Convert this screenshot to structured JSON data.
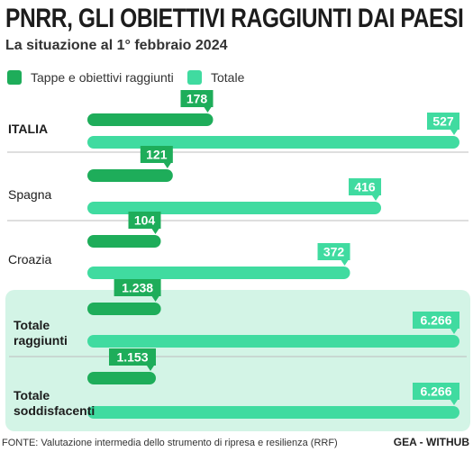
{
  "title": "PNRR, GLI OBIETTIVI RAGGIUNTI DAI PAESI",
  "subtitle": "La situazione al 1° febbraio 2024",
  "colors": {
    "dark": "#1ead5a",
    "light": "#40dba0",
    "panel": "#d3f4e6",
    "divider": "#bdbdbd"
  },
  "legend": [
    {
      "label": "Tappe e obiettivi raggiunti",
      "color": "#1ead5a"
    },
    {
      "label": "Totale",
      "color": "#40dba0"
    }
  ],
  "chart_data": {
    "type": "bar",
    "orientation": "horizontal",
    "categories": [
      "ITALIA",
      "Spagna",
      "Croazia",
      "Totale raggiunti",
      "Totale soddisfacenti"
    ],
    "series": [
      {
        "name": "Tappe e obiettivi raggiunti",
        "values": [
          178,
          121,
          104,
          1238,
          1153
        ],
        "labels": [
          "178",
          "121",
          "104",
          "1.238",
          "1.153"
        ]
      },
      {
        "name": "Totale",
        "values": [
          527,
          416,
          372,
          6266,
          6266
        ],
        "labels": [
          "527",
          "416",
          "372",
          "6.266",
          "6.266"
        ]
      }
    ]
  },
  "footer": {
    "source": "FONTE: Valutazione intermedia dello strumento di ripresa e resilienza (RRF)",
    "brand": "GEA - WITHUB"
  }
}
